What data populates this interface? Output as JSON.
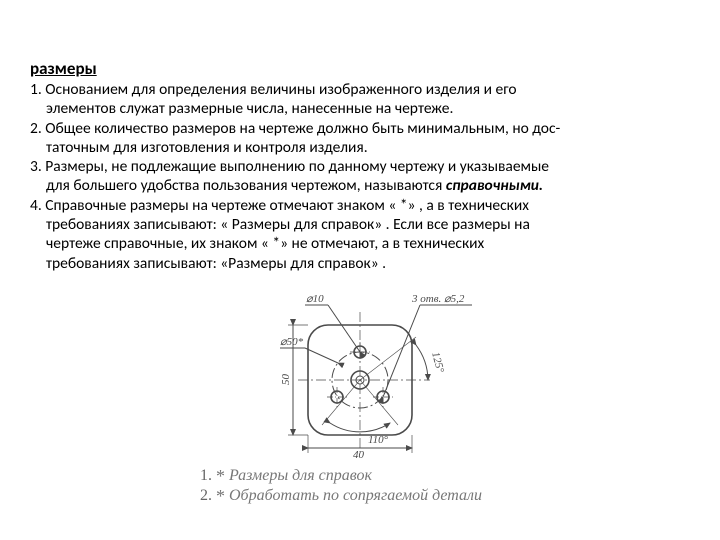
{
  "title": "размеры",
  "paragraphs": {
    "p1a": "1. Основанием для определения величины изображенного изделия и его",
    "p1b": "элементов служат размерные числа, нанесенные на чертеже.",
    "p2a": "2. Общее количество размеров на чертеже должно быть минимальным, но дос-",
    "p2b": "таточным для изготовления и контроля изделия.",
    "p3a": "3. Размеры, не подлежащие выполнению по данному чертежу и указываемые",
    "p3b_plain": "для большего удобства пользования чертежом, называются ",
    "p3b_ital": "справочными.",
    "p4a": "4. Справочные размеры на чертеже отмечают знаком « *» , а в технических",
    "p4b": "требованиях записывают: « Размеры для справок» . Если все размеры на",
    "p4c": "чертеже справочные, их знаком « *» не отмечают, а в технических",
    "p4d": "требованиях записывают: «Размеры для справок» ."
  },
  "diagram": {
    "labels": {
      "d10": "⌀10",
      "holes": "3 отв. ⌀5,2",
      "d50star": "⌀50*",
      "a125": "125°",
      "a110": "110°",
      "h50": "50",
      "w40": "40"
    },
    "stroke": "#4a4a4a",
    "thin": 1,
    "bold": 1.6,
    "font": "italic 11px 'Times New Roman', serif",
    "caption1_num": "1.",
    "caption1_text": "Размеры для справок",
    "caption2_num": "2.",
    "caption2_text": "Обработать по сопрягаемой детали"
  }
}
